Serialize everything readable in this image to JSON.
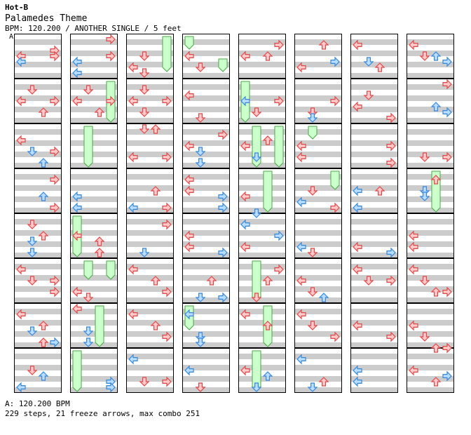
{
  "header": {
    "chart_code": "Hot-B",
    "song_title": "Palamedes Theme",
    "info_line": "BPM: 120.200 / ANOTHER SINGLE / 5 feet",
    "bpm_marker": "A"
  },
  "footer": {
    "bpm_line": "A: 120.200 BPM",
    "summary_line": "229 steps, 21 freeze arrows, max combo 251"
  },
  "colors": {
    "stripe": "#cccccc",
    "measure_border": "#000000",
    "red_arrow_fill": "#ffcccc",
    "red_arrow_stroke": "#e44444",
    "blue_arrow_fill": "#bbddff",
    "blue_arrow_stroke": "#3388dd",
    "freeze_fill": "#ccffcc",
    "freeze_stroke": "#44aa44"
  },
  "icons": {
    "left": "left-arrow-icon",
    "down": "down-arrow-icon",
    "up": "up-arrow-icon",
    "right": "right-arrow-icon"
  },
  "step_chart": {
    "lanes": [
      "left",
      "down",
      "up",
      "right"
    ],
    "measures_per_column": 8,
    "column_count": 8,
    "notes": [
      [
        1,
        1,
        "L",
        0.375,
        "r"
      ],
      [
        1,
        1,
        "L",
        0.5,
        "b"
      ],
      [
        1,
        1,
        "R",
        0.25,
        "r"
      ],
      [
        1,
        1,
        "R",
        0.375,
        "r"
      ],
      [
        1,
        2,
        "D",
        0.125,
        "r"
      ],
      [
        1,
        2,
        "L",
        0.375,
        "r"
      ],
      [
        1,
        2,
        "U",
        0.625,
        "r"
      ],
      [
        1,
        2,
        "R",
        0.375,
        "r"
      ],
      [
        1,
        3,
        "L",
        0.25,
        "r"
      ],
      [
        1,
        3,
        "D",
        0.5,
        "b"
      ],
      [
        1,
        3,
        "U",
        0.75,
        "b"
      ],
      [
        1,
        3,
        "R",
        0.5,
        "r"
      ],
      [
        1,
        4,
        "R",
        0.125,
        "r"
      ],
      [
        1,
        4,
        "U",
        0.5,
        "b"
      ],
      [
        1,
        4,
        "R",
        0.75,
        "r"
      ],
      [
        1,
        5,
        "D",
        0.125,
        "r"
      ],
      [
        1,
        5,
        "U",
        0.375,
        "r"
      ],
      [
        1,
        5,
        "D",
        0.5,
        "b"
      ],
      [
        1,
        5,
        "D",
        0.75,
        "b"
      ],
      [
        1,
        6,
        "L",
        0.125,
        "r"
      ],
      [
        1,
        6,
        "D",
        0.375,
        "r"
      ],
      [
        1,
        6,
        "R",
        0.375,
        "r"
      ],
      [
        1,
        6,
        "R",
        0.625,
        "r"
      ],
      [
        1,
        7,
        "L",
        0.125,
        "r"
      ],
      [
        1,
        7,
        "U",
        0.375,
        "r"
      ],
      [
        1,
        7,
        "D",
        0.5,
        "b"
      ],
      [
        1,
        7,
        "U",
        0.75,
        "r"
      ],
      [
        1,
        7,
        "R",
        0.75,
        "b"
      ],
      [
        1,
        8,
        "D",
        0.375,
        "r"
      ],
      [
        1,
        8,
        "U",
        0.5,
        "b"
      ],
      [
        1,
        8,
        "L",
        0.75,
        "b"
      ],
      [
        2,
        1,
        "R",
        0.0,
        "r"
      ],
      [
        2,
        1,
        "L",
        0.5,
        "b"
      ],
      [
        2,
        1,
        "L",
        0.75,
        "b"
      ],
      [
        2,
        1,
        "R",
        0.375,
        "r"
      ],
      [
        2,
        2,
        "D",
        0.125,
        "r"
      ],
      [
        2,
        2,
        "L",
        0.375,
        "r"
      ],
      [
        2,
        2,
        "U",
        0.625,
        "r"
      ],
      [
        2,
        2,
        "R",
        0.375,
        "r"
      ],
      [
        2,
        4,
        "L",
        0.5,
        "b"
      ],
      [
        2,
        4,
        "L",
        0.75,
        "b"
      ],
      [
        2,
        5,
        "L",
        0.375,
        "r"
      ],
      [
        2,
        5,
        "U",
        0.5,
        "r"
      ],
      [
        2,
        5,
        "U",
        0.75,
        "r"
      ],
      [
        2,
        6,
        "L",
        0.625,
        "r"
      ],
      [
        2,
        6,
        "D",
        0.75,
        "r"
      ],
      [
        2,
        7,
        "L",
        0.0,
        "r"
      ],
      [
        2,
        7,
        "D",
        0.5,
        "b"
      ],
      [
        2,
        7,
        "D",
        0.75,
        "b"
      ],
      [
        2,
        8,
        "R",
        0.625,
        "b"
      ],
      [
        2,
        8,
        "R",
        0.75,
        "b"
      ],
      [
        3,
        1,
        "D",
        0.375,
        "r"
      ],
      [
        3,
        1,
        "L",
        0.625,
        "r"
      ],
      [
        3,
        1,
        "D",
        0.75,
        "r"
      ],
      [
        3,
        2,
        "D",
        0.125,
        "r"
      ],
      [
        3,
        2,
        "L",
        0.375,
        "r"
      ],
      [
        3,
        2,
        "D",
        0.625,
        "r"
      ],
      [
        3,
        2,
        "R",
        0.375,
        "r"
      ],
      [
        3,
        3,
        "D",
        0.0,
        "r"
      ],
      [
        3,
        3,
        "U",
        0.0,
        "r"
      ],
      [
        3,
        3,
        "L",
        0.625,
        "r"
      ],
      [
        3,
        3,
        "R",
        0.625,
        "r"
      ],
      [
        3,
        4,
        "U",
        0.375,
        "r"
      ],
      [
        3,
        4,
        "L",
        0.75,
        "b"
      ],
      [
        3,
        4,
        "R",
        0.75,
        "r"
      ],
      [
        3,
        5,
        "R",
        0.125,
        "r"
      ],
      [
        3,
        5,
        "D",
        0.75,
        "b"
      ],
      [
        3,
        6,
        "L",
        0.125,
        "r"
      ],
      [
        3,
        6,
        "U",
        0.375,
        "r"
      ],
      [
        3,
        6,
        "R",
        0.625,
        "r"
      ],
      [
        3,
        7,
        "L",
        0.125,
        "r"
      ],
      [
        3,
        7,
        "U",
        0.375,
        "r"
      ],
      [
        3,
        7,
        "R",
        0.625,
        "r"
      ],
      [
        3,
        8,
        "L",
        0.125,
        "b"
      ],
      [
        3,
        8,
        "D",
        0.625,
        "r"
      ],
      [
        3,
        8,
        "R",
        0.625,
        "r"
      ],
      [
        4,
        1,
        "L",
        0.375,
        "r"
      ],
      [
        4,
        1,
        "D",
        0.625,
        "r"
      ],
      [
        4,
        2,
        "L",
        0.25,
        "r"
      ],
      [
        4,
        2,
        "D",
        0.75,
        "r"
      ],
      [
        4,
        3,
        "L",
        0.375,
        "r"
      ],
      [
        4,
        3,
        "D",
        0.5,
        "b"
      ],
      [
        4,
        3,
        "D",
        0.75,
        "b"
      ],
      [
        4,
        3,
        "R",
        0.125,
        "r"
      ],
      [
        4,
        4,
        "L",
        0.125,
        "r"
      ],
      [
        4,
        4,
        "L",
        0.375,
        "r"
      ],
      [
        4,
        4,
        "R",
        0.5,
        "b"
      ],
      [
        4,
        4,
        "R",
        0.75,
        "b"
      ],
      [
        4,
        5,
        "L",
        0.375,
        "r"
      ],
      [
        4,
        5,
        "L",
        0.625,
        "r"
      ],
      [
        4,
        5,
        "R",
        0.75,
        "b"
      ],
      [
        4,
        6,
        "U",
        0.375,
        "r"
      ],
      [
        4,
        6,
        "R",
        0.75,
        "b"
      ],
      [
        4,
        6,
        "D",
        0.75,
        "b"
      ],
      [
        4,
        7,
        "L",
        0.125,
        "b"
      ],
      [
        4,
        7,
        "D",
        0.625,
        "b"
      ],
      [
        4,
        7,
        "D",
        0.75,
        "b"
      ],
      [
        4,
        8,
        "L",
        0.375,
        "b"
      ],
      [
        4,
        8,
        "D",
        0.75,
        "b"
      ],
      [
        4,
        8,
        "D",
        0.75,
        "r"
      ],
      [
        5,
        1,
        "R",
        0.125,
        "r"
      ],
      [
        5,
        1,
        "U",
        0.375,
        "r"
      ],
      [
        5,
        1,
        "L",
        0.375,
        "r"
      ],
      [
        5,
        2,
        "L",
        0.375,
        "b"
      ],
      [
        5,
        2,
        "R",
        0.375,
        "r"
      ],
      [
        5,
        2,
        "D",
        0.625,
        "r"
      ],
      [
        5,
        3,
        "U",
        0.25,
        "r"
      ],
      [
        5,
        3,
        "L",
        0.375,
        "r"
      ],
      [
        5,
        3,
        "D",
        0.625,
        "b"
      ],
      [
        5,
        4,
        "L",
        0.5,
        "r"
      ],
      [
        5,
        4,
        "D",
        0.875,
        "b"
      ],
      [
        5,
        5,
        "L",
        0.125,
        "b"
      ],
      [
        5,
        5,
        "R",
        0.375,
        "b"
      ],
      [
        5,
        5,
        "L",
        0.625,
        "r"
      ],
      [
        5,
        6,
        "R",
        0.125,
        "r"
      ],
      [
        5,
        6,
        "U",
        0.375,
        "r"
      ],
      [
        5,
        6,
        "D",
        0.75,
        "r"
      ],
      [
        5,
        7,
        "L",
        0.125,
        "r"
      ],
      [
        5,
        7,
        "U",
        0.375,
        "r"
      ],
      [
        5,
        8,
        "L",
        0.375,
        "r"
      ],
      [
        5,
        8,
        "U",
        0.5,
        "b"
      ],
      [
        5,
        8,
        "D",
        0.75,
        "b"
      ],
      [
        6,
        1,
        "U",
        0.125,
        "r"
      ],
      [
        6,
        1,
        "R",
        0.5,
        "b"
      ],
      [
        6,
        1,
        "L",
        0.625,
        "r"
      ],
      [
        6,
        2,
        "R",
        0.375,
        "r"
      ],
      [
        6,
        2,
        "D",
        0.625,
        "r"
      ],
      [
        6,
        2,
        "D",
        0.75,
        "b"
      ],
      [
        6,
        3,
        "L",
        0.375,
        "r"
      ],
      [
        6,
        3,
        "L",
        0.625,
        "r"
      ],
      [
        6,
        4,
        "D",
        0.375,
        "r"
      ],
      [
        6,
        4,
        "L",
        0.625,
        "b"
      ],
      [
        6,
        4,
        "R",
        0.75,
        "r"
      ],
      [
        6,
        5,
        "L",
        0.625,
        "b"
      ],
      [
        6,
        5,
        "D",
        0.75,
        "r"
      ],
      [
        6,
        6,
        "L",
        0.375,
        "r"
      ],
      [
        6,
        6,
        "D",
        0.625,
        "r"
      ],
      [
        6,
        6,
        "U",
        0.75,
        "b"
      ],
      [
        6,
        7,
        "L",
        0.125,
        "r"
      ],
      [
        6,
        7,
        "D",
        0.375,
        "r"
      ],
      [
        6,
        7,
        "R",
        0.625,
        "r"
      ],
      [
        6,
        8,
        "L",
        0.125,
        "b"
      ],
      [
        6,
        8,
        "U",
        0.625,
        "r"
      ],
      [
        6,
        8,
        "D",
        0.75,
        "b"
      ],
      [
        7,
        1,
        "L",
        0.125,
        "r"
      ],
      [
        7,
        1,
        "D",
        0.5,
        "b"
      ],
      [
        7,
        1,
        "U",
        0.625,
        "r"
      ],
      [
        7,
        2,
        "D",
        0.25,
        "r"
      ],
      [
        7,
        2,
        "L",
        0.5,
        "r"
      ],
      [
        7,
        2,
        "R",
        0.75,
        "r"
      ],
      [
        7,
        3,
        "R",
        0.375,
        "r"
      ],
      [
        7,
        3,
        "R",
        0.75,
        "r"
      ],
      [
        7,
        4,
        "L",
        0.375,
        "b"
      ],
      [
        7,
        4,
        "L",
        0.75,
        "b"
      ],
      [
        7,
        4,
        "U",
        0.375,
        "r"
      ],
      [
        7,
        5,
        "L",
        0.625,
        "r"
      ],
      [
        7,
        5,
        "R",
        0.75,
        "b"
      ],
      [
        7,
        6,
        "L",
        0.125,
        "r"
      ],
      [
        7,
        6,
        "D",
        0.375,
        "r"
      ],
      [
        7,
        6,
        "R",
        0.375,
        "r"
      ],
      [
        7,
        7,
        "L",
        0.375,
        "r"
      ],
      [
        7,
        7,
        "R",
        0.625,
        "r"
      ],
      [
        7,
        8,
        "L",
        0.375,
        "b"
      ],
      [
        7,
        8,
        "L",
        0.625,
        "b"
      ],
      [
        8,
        1,
        "L",
        0.125,
        "r"
      ],
      [
        8,
        1,
        "D",
        0.375,
        "r"
      ],
      [
        8,
        1,
        "U",
        0.375,
        "b"
      ],
      [
        8,
        1,
        "R",
        0.5,
        "b"
      ],
      [
        8,
        2,
        "R",
        0.0,
        "r"
      ],
      [
        8,
        2,
        "U",
        0.5,
        "b"
      ],
      [
        8,
        2,
        "R",
        0.625,
        "b"
      ],
      [
        8,
        3,
        "D",
        0.625,
        "r"
      ],
      [
        8,
        3,
        "R",
        0.625,
        "r"
      ],
      [
        8,
        4,
        "D",
        0.375,
        "b"
      ],
      [
        8,
        4,
        "U",
        0.125,
        "r"
      ],
      [
        8,
        4,
        "D",
        0.5,
        "b"
      ],
      [
        8,
        5,
        "L",
        0.375,
        "r"
      ],
      [
        8,
        5,
        "L",
        0.625,
        "r"
      ],
      [
        8,
        6,
        "L",
        0.125,
        "r"
      ],
      [
        8,
        6,
        "D",
        0.375,
        "r"
      ],
      [
        8,
        6,
        "U",
        0.625,
        "r"
      ],
      [
        8,
        6,
        "R",
        0.625,
        "r"
      ],
      [
        8,
        7,
        "L",
        0.375,
        "r"
      ],
      [
        8,
        7,
        "D",
        0.625,
        "r"
      ],
      [
        8,
        7,
        "U",
        0.875,
        "r"
      ],
      [
        8,
        7,
        "R",
        0.875,
        "r"
      ],
      [
        8,
        8,
        "L",
        0.375,
        "r"
      ],
      [
        8,
        8,
        "R",
        0.5,
        "b"
      ],
      [
        8,
        8,
        "U",
        0.625,
        "r"
      ]
    ],
    "freezes": [
      [
        2,
        3,
        "D",
        0.0,
        1.0
      ],
      [
        2,
        2,
        "R",
        0.0,
        1.0
      ],
      [
        2,
        5,
        "L",
        0.0,
        1.0
      ],
      [
        2,
        6,
        "D",
        0.0,
        0.5
      ],
      [
        2,
        6,
        "R",
        0.0,
        0.5
      ],
      [
        2,
        7,
        "U",
        0.0,
        1.0
      ],
      [
        2,
        8,
        "L",
        0.0,
        1.0
      ],
      [
        3,
        1,
        "R",
        0.0,
        0.875
      ],
      [
        4,
        1,
        "L",
        0.0,
        0.375
      ],
      [
        4,
        1,
        "R",
        0.5,
        0.875
      ],
      [
        4,
        7,
        "L",
        0.0,
        0.625
      ],
      [
        5,
        2,
        "L",
        0.0,
        1.0
      ],
      [
        5,
        3,
        "D",
        0.0,
        1.0
      ],
      [
        5,
        6,
        "D",
        0.0,
        1.0
      ],
      [
        5,
        7,
        "U",
        0.0,
        1.0
      ],
      [
        5,
        8,
        "D",
        0.0,
        1.0
      ],
      [
        5,
        4,
        "U",
        0.0,
        1.0
      ],
      [
        5,
        3,
        "R",
        0.0,
        1.0
      ],
      [
        6,
        3,
        "D",
        0.0,
        0.375
      ],
      [
        6,
        4,
        "R",
        0.0,
        0.5
      ],
      [
        8,
        4,
        "U",
        0.0,
        1.0
      ]
    ]
  }
}
